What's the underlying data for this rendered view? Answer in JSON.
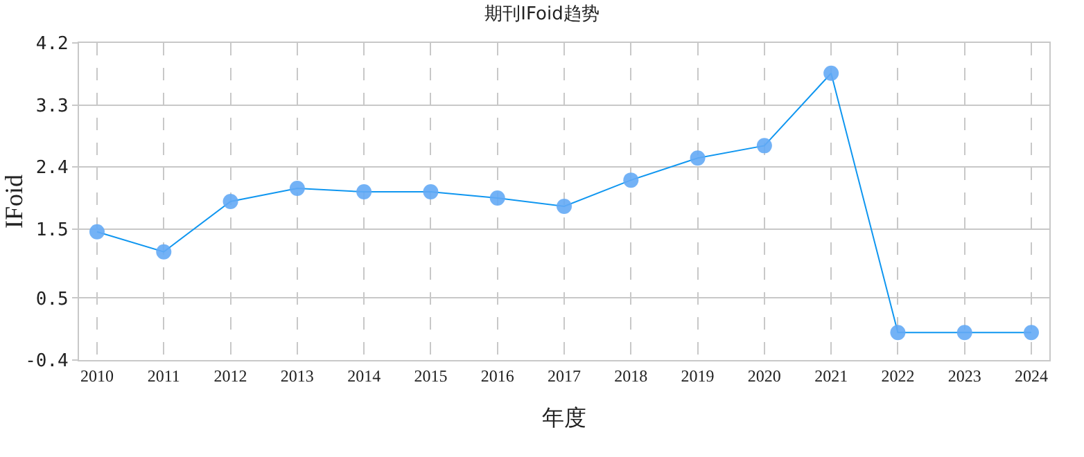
{
  "chart_data": {
    "type": "line",
    "title": "期刊IFoid趋势",
    "xlabel": "年度",
    "ylabel": "IFoid",
    "categories": [
      "2010",
      "2011",
      "2012",
      "2013",
      "2014",
      "2015",
      "2016",
      "2017",
      "2018",
      "2019",
      "2020",
      "2021",
      "2022",
      "2023",
      "2024"
    ],
    "series": [
      {
        "color": "#0f96f0",
        "values": [
          1.46,
          1.17,
          1.9,
          2.09,
          2.04,
          2.04,
          1.95,
          1.83,
          2.21,
          2.53,
          2.71,
          3.76,
          0,
          0,
          0
        ]
      }
    ],
    "ylim": [
      -0.4,
      4.2
    ],
    "yticks": [
      -0.4,
      0.5,
      1.5,
      2.4,
      3.3,
      4.2
    ],
    "grid": true,
    "marker": "circle",
    "line_style": "solid"
  }
}
